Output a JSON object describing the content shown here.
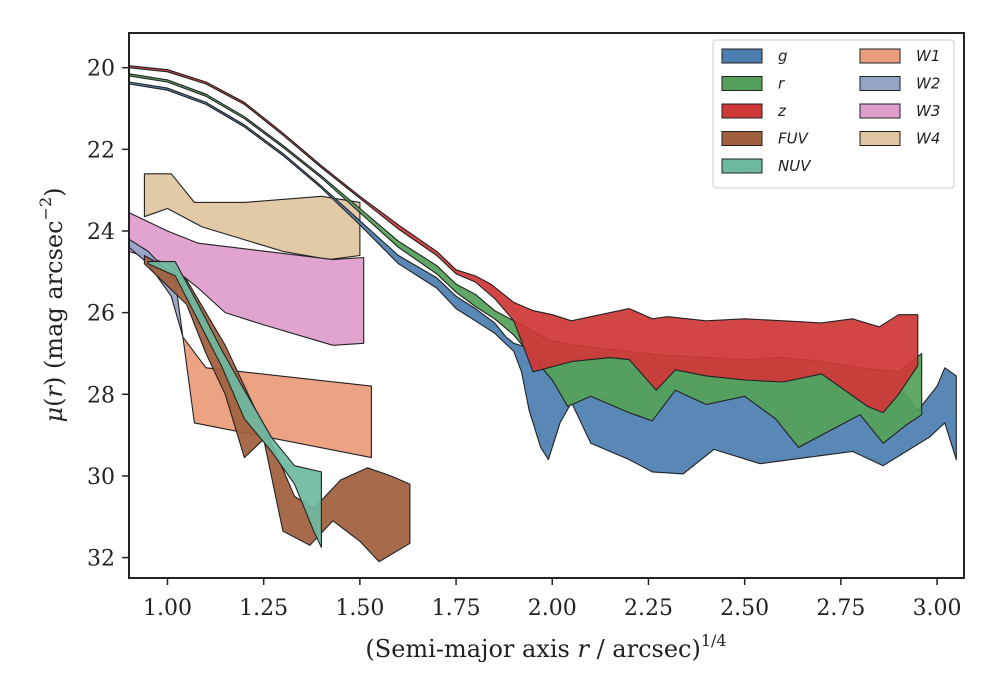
{
  "chart_data": {
    "type": "area",
    "xlabel": "(Semi-major axis r / arcsec)^1/4",
    "xlabel_parts": {
      "prefix": "(Semi-major axis ",
      "var": "r",
      "mid": " / arcsec)",
      "sup": "1/4"
    },
    "ylabel": "μ(r) (mag arcsec^−2)",
    "ylabel_parts": {
      "mu": "μ",
      "open": "(",
      "var": "r",
      "rest": ") (mag arcsec",
      "sup": "−2",
      "close": ")"
    },
    "xlim": [
      0.9,
      3.07
    ],
    "ylim": [
      32.5,
      19.15
    ],
    "y_inverted": true,
    "xticks": [
      1.0,
      1.25,
      1.5,
      1.75,
      2.0,
      2.25,
      2.5,
      2.75,
      3.0
    ],
    "xtick_labels": [
      "1.00",
      "1.25",
      "1.50",
      "1.75",
      "2.00",
      "2.25",
      "2.50",
      "2.75",
      "3.00"
    ],
    "yticks": [
      20,
      22,
      24,
      26,
      28,
      30,
      32
    ],
    "ytick_labels": [
      "20",
      "22",
      "24",
      "26",
      "28",
      "30",
      "32"
    ],
    "grid": false,
    "legend_position": "top-right",
    "legend_columns": 2,
    "series": [
      {
        "name": "g",
        "color": "#4c7fb0",
        "upper": [
          [
            0.9,
            20.35
          ],
          [
            1.0,
            20.5
          ],
          [
            1.1,
            20.85
          ],
          [
            1.2,
            21.4
          ],
          [
            1.3,
            22.1
          ],
          [
            1.4,
            22.9
          ],
          [
            1.5,
            23.75
          ],
          [
            1.6,
            24.6
          ],
          [
            1.7,
            25.15
          ],
          [
            1.75,
            25.6
          ],
          [
            1.8,
            25.9
          ],
          [
            1.85,
            26.25
          ],
          [
            1.88,
            26.6
          ],
          [
            1.9,
            26.75
          ],
          [
            1.95,
            26.9
          ],
          [
            2.0,
            27.0
          ],
          [
            2.1,
            27.1
          ],
          [
            2.2,
            27.15
          ],
          [
            2.3,
            27.25
          ],
          [
            2.4,
            27.3
          ],
          [
            2.5,
            27.35
          ],
          [
            2.6,
            27.3
          ],
          [
            2.7,
            27.4
          ],
          [
            2.8,
            27.6
          ],
          [
            2.9,
            27.8
          ],
          [
            2.95,
            28.4
          ],
          [
            3.0,
            27.8
          ],
          [
            3.02,
            27.35
          ],
          [
            3.05,
            27.55
          ]
        ],
        "lower": [
          [
            0.9,
            20.4
          ],
          [
            1.0,
            20.55
          ],
          [
            1.1,
            20.9
          ],
          [
            1.2,
            21.45
          ],
          [
            1.3,
            22.15
          ],
          [
            1.4,
            22.95
          ],
          [
            1.5,
            23.85
          ],
          [
            1.6,
            24.8
          ],
          [
            1.7,
            25.4
          ],
          [
            1.75,
            25.9
          ],
          [
            1.8,
            26.2
          ],
          [
            1.85,
            26.5
          ],
          [
            1.9,
            26.95
          ],
          [
            1.92,
            27.45
          ],
          [
            1.94,
            28.4
          ],
          [
            1.97,
            29.3
          ],
          [
            1.99,
            29.6
          ],
          [
            2.02,
            28.7
          ],
          [
            2.05,
            28.2
          ],
          [
            2.1,
            29.2
          ],
          [
            2.2,
            29.6
          ],
          [
            2.26,
            29.9
          ],
          [
            2.34,
            29.95
          ],
          [
            2.42,
            29.35
          ],
          [
            2.54,
            29.7
          ],
          [
            2.66,
            29.55
          ],
          [
            2.78,
            29.4
          ],
          [
            2.86,
            29.75
          ],
          [
            2.92,
            29.4
          ],
          [
            2.98,
            29.05
          ],
          [
            3.02,
            28.7
          ],
          [
            3.05,
            29.6
          ]
        ]
      },
      {
        "name": "r",
        "color": "#55a05a",
        "upper": [
          [
            0.9,
            20.15
          ],
          [
            1.0,
            20.3
          ],
          [
            1.1,
            20.65
          ],
          [
            1.2,
            21.2
          ],
          [
            1.3,
            21.9
          ],
          [
            1.4,
            22.65
          ],
          [
            1.5,
            23.45
          ],
          [
            1.6,
            24.25
          ],
          [
            1.7,
            24.85
          ],
          [
            1.75,
            25.3
          ],
          [
            1.8,
            25.55
          ],
          [
            1.85,
            25.95
          ],
          [
            1.9,
            26.2
          ],
          [
            1.95,
            26.45
          ],
          [
            2.0,
            26.7
          ],
          [
            2.1,
            26.85
          ],
          [
            2.2,
            26.95
          ],
          [
            2.3,
            27.05
          ],
          [
            2.4,
            27.1
          ],
          [
            2.5,
            27.15
          ],
          [
            2.6,
            27.1
          ],
          [
            2.7,
            27.2
          ],
          [
            2.8,
            27.35
          ],
          [
            2.9,
            27.45
          ],
          [
            2.96,
            27.0
          ]
        ],
        "lower": [
          [
            0.9,
            20.2
          ],
          [
            1.0,
            20.35
          ],
          [
            1.1,
            20.7
          ],
          [
            1.2,
            21.25
          ],
          [
            1.3,
            21.95
          ],
          [
            1.4,
            22.7
          ],
          [
            1.5,
            23.55
          ],
          [
            1.6,
            24.4
          ],
          [
            1.7,
            25.05
          ],
          [
            1.75,
            25.5
          ],
          [
            1.8,
            25.85
          ],
          [
            1.85,
            26.15
          ],
          [
            1.9,
            26.55
          ],
          [
            1.95,
            27.1
          ],
          [
            2.0,
            27.65
          ],
          [
            2.04,
            28.3
          ],
          [
            2.1,
            28.05
          ],
          [
            2.2,
            28.45
          ],
          [
            2.26,
            28.65
          ],
          [
            2.32,
            27.9
          ],
          [
            2.4,
            28.25
          ],
          [
            2.5,
            28.05
          ],
          [
            2.58,
            28.6
          ],
          [
            2.64,
            29.3
          ],
          [
            2.72,
            28.9
          ],
          [
            2.8,
            28.5
          ],
          [
            2.86,
            29.2
          ],
          [
            2.92,
            28.75
          ],
          [
            2.96,
            28.5
          ]
        ]
      },
      {
        "name": "z",
        "color": "#d03838",
        "upper": [
          [
            0.9,
            19.95
          ],
          [
            1.0,
            20.05
          ],
          [
            1.1,
            20.35
          ],
          [
            1.2,
            20.85
          ],
          [
            1.3,
            21.6
          ],
          [
            1.4,
            22.4
          ],
          [
            1.5,
            23.15
          ],
          [
            1.6,
            23.85
          ],
          [
            1.7,
            24.5
          ],
          [
            1.75,
            24.95
          ],
          [
            1.8,
            25.1
          ],
          [
            1.84,
            25.3
          ],
          [
            1.9,
            25.75
          ],
          [
            1.95,
            25.95
          ],
          [
            2.0,
            26.05
          ],
          [
            2.05,
            26.2
          ],
          [
            2.1,
            26.1
          ],
          [
            2.2,
            25.9
          ],
          [
            2.26,
            26.15
          ],
          [
            2.3,
            26.1
          ],
          [
            2.4,
            26.2
          ],
          [
            2.5,
            26.15
          ],
          [
            2.6,
            26.2
          ],
          [
            2.7,
            26.25
          ],
          [
            2.78,
            26.15
          ],
          [
            2.85,
            26.35
          ],
          [
            2.9,
            26.05
          ],
          [
            2.95,
            26.05
          ]
        ],
        "lower": [
          [
            0.9,
            20.0
          ],
          [
            1.0,
            20.1
          ],
          [
            1.1,
            20.4
          ],
          [
            1.2,
            20.9
          ],
          [
            1.3,
            21.65
          ],
          [
            1.4,
            22.45
          ],
          [
            1.5,
            23.2
          ],
          [
            1.6,
            23.95
          ],
          [
            1.7,
            24.6
          ],
          [
            1.75,
            25.05
          ],
          [
            1.8,
            25.25
          ],
          [
            1.85,
            25.65
          ],
          [
            1.9,
            26.2
          ],
          [
            1.95,
            27.45
          ],
          [
            2.05,
            27.2
          ],
          [
            2.15,
            27.1
          ],
          [
            2.2,
            27.15
          ],
          [
            2.27,
            27.9
          ],
          [
            2.32,
            27.4
          ],
          [
            2.4,
            27.55
          ],
          [
            2.5,
            27.65
          ],
          [
            2.6,
            27.7
          ],
          [
            2.7,
            27.5
          ],
          [
            2.76,
            27.9
          ],
          [
            2.82,
            28.3
          ],
          [
            2.86,
            28.45
          ],
          [
            2.9,
            28.0
          ],
          [
            2.95,
            27.3
          ]
        ]
      },
      {
        "name": "FUV",
        "color": "#a0603e",
        "upper": [
          [
            0.94,
            24.6
          ],
          [
            1.05,
            25.2
          ],
          [
            1.15,
            26.8
          ],
          [
            1.22,
            28.2
          ],
          [
            1.28,
            29.4
          ],
          [
            1.33,
            30.5
          ],
          [
            1.38,
            30.8
          ],
          [
            1.45,
            30.1
          ],
          [
            1.52,
            29.8
          ],
          [
            1.58,
            30.0
          ],
          [
            1.63,
            30.2
          ]
        ],
        "lower": [
          [
            0.94,
            24.8
          ],
          [
            1.05,
            25.8
          ],
          [
            1.1,
            27.0
          ],
          [
            1.15,
            28.0
          ],
          [
            1.2,
            29.55
          ],
          [
            1.25,
            29.1
          ],
          [
            1.3,
            31.35
          ],
          [
            1.37,
            31.7
          ],
          [
            1.43,
            31.1
          ],
          [
            1.5,
            31.6
          ],
          [
            1.55,
            32.1
          ],
          [
            1.63,
            31.65
          ]
        ]
      },
      {
        "name": "NUV",
        "color": "#6fb9a0",
        "upper": [
          [
            0.95,
            24.75
          ],
          [
            1.02,
            24.75
          ],
          [
            1.08,
            25.8
          ],
          [
            1.14,
            26.9
          ],
          [
            1.2,
            27.9
          ],
          [
            1.27,
            29.05
          ],
          [
            1.33,
            29.75
          ],
          [
            1.4,
            29.9
          ]
        ],
        "lower": [
          [
            0.95,
            24.8
          ],
          [
            1.02,
            25.1
          ],
          [
            1.08,
            26.2
          ],
          [
            1.14,
            27.3
          ],
          [
            1.2,
            28.6
          ],
          [
            1.27,
            29.4
          ],
          [
            1.33,
            30.2
          ],
          [
            1.38,
            31.35
          ],
          [
            1.4,
            31.75
          ]
        ]
      },
      {
        "name": "W1",
        "color": "#eb9c7a",
        "upper": [
          [
            1.04,
            26.6
          ],
          [
            1.1,
            27.35
          ],
          [
            1.53,
            27.8
          ]
        ],
        "lower": [
          [
            1.04,
            26.6
          ],
          [
            1.07,
            28.7
          ],
          [
            1.53,
            29.55
          ]
        ]
      },
      {
        "name": "W2",
        "color": "#96a4c8",
        "upper": [
          [
            0.9,
            24.2
          ],
          [
            0.95,
            24.5
          ],
          [
            1.02,
            25.2
          ],
          [
            1.04,
            26.6
          ]
        ],
        "lower": [
          [
            0.9,
            24.4
          ],
          [
            0.95,
            24.8
          ],
          [
            1.01,
            25.6
          ],
          [
            1.04,
            26.6
          ]
        ]
      },
      {
        "name": "W3",
        "color": "#df9dcb",
        "upper": [
          [
            0.9,
            23.55
          ],
          [
            1.0,
            24.0
          ],
          [
            1.08,
            24.3
          ],
          [
            1.3,
            24.55
          ],
          [
            1.43,
            24.7
          ],
          [
            1.51,
            24.65
          ]
        ],
        "lower": [
          [
            0.9,
            24.5
          ],
          [
            1.0,
            24.8
          ],
          [
            1.08,
            25.4
          ],
          [
            1.15,
            26.0
          ],
          [
            1.25,
            26.3
          ],
          [
            1.43,
            26.8
          ],
          [
            1.51,
            26.75
          ]
        ]
      },
      {
        "name": "W4",
        "color": "#e0c6a2",
        "upper": [
          [
            0.94,
            22.6
          ],
          [
            1.01,
            22.6
          ],
          [
            1.07,
            23.3
          ],
          [
            1.2,
            23.3
          ],
          [
            1.4,
            23.15
          ],
          [
            1.5,
            23.3
          ]
        ],
        "lower": [
          [
            0.94,
            23.65
          ],
          [
            1.0,
            23.45
          ],
          [
            1.09,
            23.9
          ],
          [
            1.3,
            24.5
          ],
          [
            1.42,
            24.7
          ],
          [
            1.5,
            24.6
          ]
        ]
      }
    ],
    "draw_order": [
      "W4",
      "W3",
      "W2",
      "W1",
      "FUV",
      "NUV",
      "g",
      "r",
      "z"
    ],
    "legend_items_order": [
      "g",
      "r",
      "z",
      "FUV",
      "NUV",
      "W1",
      "W2",
      "W3",
      "W4"
    ]
  }
}
